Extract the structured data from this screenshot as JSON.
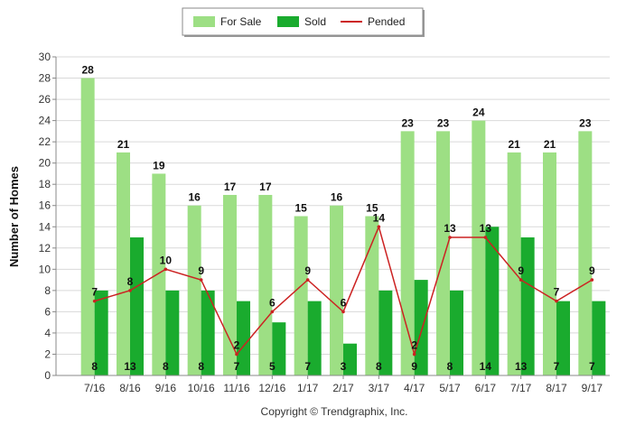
{
  "chart_data": {
    "type": "bar",
    "categories": [
      "7/16",
      "8/16",
      "9/16",
      "10/16",
      "11/16",
      "12/16",
      "1/17",
      "2/17",
      "3/17",
      "4/17",
      "5/17",
      "6/17",
      "7/17",
      "8/17",
      "9/17"
    ],
    "series": [
      {
        "name": "For Sale",
        "type": "bar",
        "color": "#9ddf84",
        "values": [
          28,
          21,
          19,
          16,
          17,
          17,
          15,
          16,
          15,
          23,
          23,
          24,
          21,
          21,
          23
        ]
      },
      {
        "name": "Sold",
        "type": "bar",
        "color": "#1aab2e",
        "values": [
          8,
          13,
          8,
          8,
          7,
          5,
          7,
          3,
          8,
          9,
          8,
          14,
          13,
          7,
          7
        ]
      },
      {
        "name": "Pended",
        "type": "line",
        "color": "#cc2222",
        "values": [
          7,
          8,
          10,
          9,
          2,
          6,
          9,
          6,
          14,
          2,
          13,
          13,
          9,
          7,
          9
        ]
      }
    ],
    "title": "",
    "xlabel": "",
    "ylabel": "Number of Homes",
    "ylim": [
      0,
      30
    ],
    "yticks": [
      0,
      2,
      4,
      6,
      8,
      10,
      12,
      14,
      16,
      18,
      20,
      22,
      24,
      26,
      28,
      30
    ],
    "grid": true,
    "legend_position": "top-center"
  },
  "copyright": "Copyright © Trendgraphix, Inc."
}
